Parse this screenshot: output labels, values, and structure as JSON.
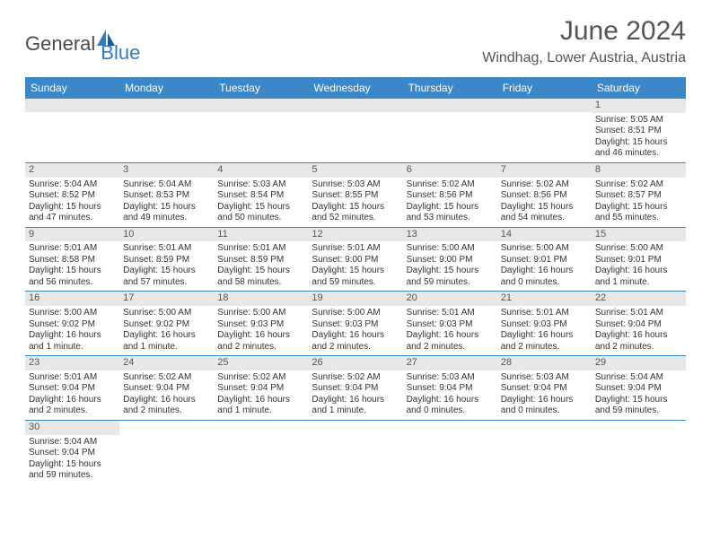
{
  "logo": {
    "text1": "General",
    "text2": "Blue"
  },
  "title": "June 2024",
  "location": "Windhag, Lower Austria, Austria",
  "weekdays": [
    "Sunday",
    "Monday",
    "Tuesday",
    "Wednesday",
    "Thursday",
    "Friday",
    "Saturday"
  ],
  "colors": {
    "header_bg": "#3b87c8",
    "header_text": "#ffffff",
    "daynum_bg": "#e8e8e8",
    "row_border": "#3b87c8",
    "body_text": "#333333",
    "title_text": "#555555",
    "logo_gray": "#4a4a4a",
    "logo_blue": "#2f7ebf"
  },
  "weeks": [
    [
      {
        "day": "",
        "sunrise": "",
        "sunset": "",
        "daylight": ""
      },
      {
        "day": "",
        "sunrise": "",
        "sunset": "",
        "daylight": ""
      },
      {
        "day": "",
        "sunrise": "",
        "sunset": "",
        "daylight": ""
      },
      {
        "day": "",
        "sunrise": "",
        "sunset": "",
        "daylight": ""
      },
      {
        "day": "",
        "sunrise": "",
        "sunset": "",
        "daylight": ""
      },
      {
        "day": "",
        "sunrise": "",
        "sunset": "",
        "daylight": ""
      },
      {
        "day": "1",
        "sunrise": "Sunrise: 5:05 AM",
        "sunset": "Sunset: 8:51 PM",
        "daylight": "Daylight: 15 hours and 46 minutes."
      }
    ],
    [
      {
        "day": "2",
        "sunrise": "Sunrise: 5:04 AM",
        "sunset": "Sunset: 8:52 PM",
        "daylight": "Daylight: 15 hours and 47 minutes."
      },
      {
        "day": "3",
        "sunrise": "Sunrise: 5:04 AM",
        "sunset": "Sunset: 8:53 PM",
        "daylight": "Daylight: 15 hours and 49 minutes."
      },
      {
        "day": "4",
        "sunrise": "Sunrise: 5:03 AM",
        "sunset": "Sunset: 8:54 PM",
        "daylight": "Daylight: 15 hours and 50 minutes."
      },
      {
        "day": "5",
        "sunrise": "Sunrise: 5:03 AM",
        "sunset": "Sunset: 8:55 PM",
        "daylight": "Daylight: 15 hours and 52 minutes."
      },
      {
        "day": "6",
        "sunrise": "Sunrise: 5:02 AM",
        "sunset": "Sunset: 8:56 PM",
        "daylight": "Daylight: 15 hours and 53 minutes."
      },
      {
        "day": "7",
        "sunrise": "Sunrise: 5:02 AM",
        "sunset": "Sunset: 8:56 PM",
        "daylight": "Daylight: 15 hours and 54 minutes."
      },
      {
        "day": "8",
        "sunrise": "Sunrise: 5:02 AM",
        "sunset": "Sunset: 8:57 PM",
        "daylight": "Daylight: 15 hours and 55 minutes."
      }
    ],
    [
      {
        "day": "9",
        "sunrise": "Sunrise: 5:01 AM",
        "sunset": "Sunset: 8:58 PM",
        "daylight": "Daylight: 15 hours and 56 minutes."
      },
      {
        "day": "10",
        "sunrise": "Sunrise: 5:01 AM",
        "sunset": "Sunset: 8:59 PM",
        "daylight": "Daylight: 15 hours and 57 minutes."
      },
      {
        "day": "11",
        "sunrise": "Sunrise: 5:01 AM",
        "sunset": "Sunset: 8:59 PM",
        "daylight": "Daylight: 15 hours and 58 minutes."
      },
      {
        "day": "12",
        "sunrise": "Sunrise: 5:01 AM",
        "sunset": "Sunset: 9:00 PM",
        "daylight": "Daylight: 15 hours and 59 minutes."
      },
      {
        "day": "13",
        "sunrise": "Sunrise: 5:00 AM",
        "sunset": "Sunset: 9:00 PM",
        "daylight": "Daylight: 15 hours and 59 minutes."
      },
      {
        "day": "14",
        "sunrise": "Sunrise: 5:00 AM",
        "sunset": "Sunset: 9:01 PM",
        "daylight": "Daylight: 16 hours and 0 minutes."
      },
      {
        "day": "15",
        "sunrise": "Sunrise: 5:00 AM",
        "sunset": "Sunset: 9:01 PM",
        "daylight": "Daylight: 16 hours and 1 minute."
      }
    ],
    [
      {
        "day": "16",
        "sunrise": "Sunrise: 5:00 AM",
        "sunset": "Sunset: 9:02 PM",
        "daylight": "Daylight: 16 hours and 1 minute."
      },
      {
        "day": "17",
        "sunrise": "Sunrise: 5:00 AM",
        "sunset": "Sunset: 9:02 PM",
        "daylight": "Daylight: 16 hours and 1 minute."
      },
      {
        "day": "18",
        "sunrise": "Sunrise: 5:00 AM",
        "sunset": "Sunset: 9:03 PM",
        "daylight": "Daylight: 16 hours and 2 minutes."
      },
      {
        "day": "19",
        "sunrise": "Sunrise: 5:00 AM",
        "sunset": "Sunset: 9:03 PM",
        "daylight": "Daylight: 16 hours and 2 minutes."
      },
      {
        "day": "20",
        "sunrise": "Sunrise: 5:01 AM",
        "sunset": "Sunset: 9:03 PM",
        "daylight": "Daylight: 16 hours and 2 minutes."
      },
      {
        "day": "21",
        "sunrise": "Sunrise: 5:01 AM",
        "sunset": "Sunset: 9:03 PM",
        "daylight": "Daylight: 16 hours and 2 minutes."
      },
      {
        "day": "22",
        "sunrise": "Sunrise: 5:01 AM",
        "sunset": "Sunset: 9:04 PM",
        "daylight": "Daylight: 16 hours and 2 minutes."
      }
    ],
    [
      {
        "day": "23",
        "sunrise": "Sunrise: 5:01 AM",
        "sunset": "Sunset: 9:04 PM",
        "daylight": "Daylight: 16 hours and 2 minutes."
      },
      {
        "day": "24",
        "sunrise": "Sunrise: 5:02 AM",
        "sunset": "Sunset: 9:04 PM",
        "daylight": "Daylight: 16 hours and 2 minutes."
      },
      {
        "day": "25",
        "sunrise": "Sunrise: 5:02 AM",
        "sunset": "Sunset: 9:04 PM",
        "daylight": "Daylight: 16 hours and 1 minute."
      },
      {
        "day": "26",
        "sunrise": "Sunrise: 5:02 AM",
        "sunset": "Sunset: 9:04 PM",
        "daylight": "Daylight: 16 hours and 1 minute."
      },
      {
        "day": "27",
        "sunrise": "Sunrise: 5:03 AM",
        "sunset": "Sunset: 9:04 PM",
        "daylight": "Daylight: 16 hours and 0 minutes."
      },
      {
        "day": "28",
        "sunrise": "Sunrise: 5:03 AM",
        "sunset": "Sunset: 9:04 PM",
        "daylight": "Daylight: 16 hours and 0 minutes."
      },
      {
        "day": "29",
        "sunrise": "Sunrise: 5:04 AM",
        "sunset": "Sunset: 9:04 PM",
        "daylight": "Daylight: 15 hours and 59 minutes."
      }
    ],
    [
      {
        "day": "30",
        "sunrise": "Sunrise: 5:04 AM",
        "sunset": "Sunset: 9:04 PM",
        "daylight": "Daylight: 15 hours and 59 minutes."
      },
      {
        "day": "",
        "sunrise": "",
        "sunset": "",
        "daylight": ""
      },
      {
        "day": "",
        "sunrise": "",
        "sunset": "",
        "daylight": ""
      },
      {
        "day": "",
        "sunrise": "",
        "sunset": "",
        "daylight": ""
      },
      {
        "day": "",
        "sunrise": "",
        "sunset": "",
        "daylight": ""
      },
      {
        "day": "",
        "sunrise": "",
        "sunset": "",
        "daylight": ""
      },
      {
        "day": "",
        "sunrise": "",
        "sunset": "",
        "daylight": ""
      }
    ]
  ]
}
